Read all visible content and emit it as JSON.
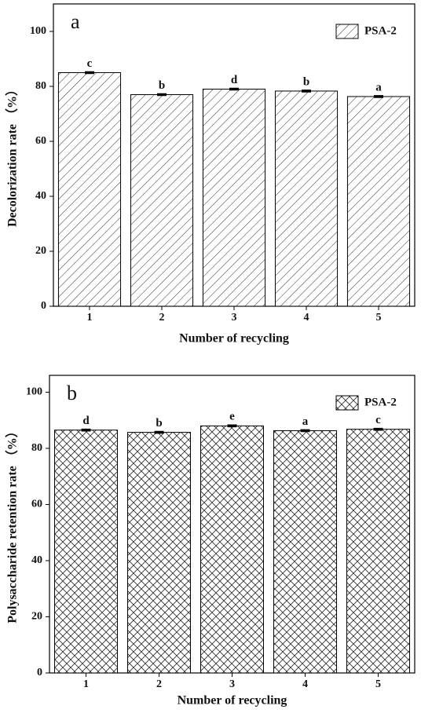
{
  "chart_data": [
    {
      "type": "bar",
      "panel_label": "a",
      "categories": [
        "1",
        "2",
        "3",
        "4",
        "5"
      ],
      "series": [
        {
          "name": "PSA-2",
          "color": "#000000",
          "hatch": "/",
          "values": [
            85,
            77,
            79,
            78.3,
            76.3
          ],
          "errors": [
            0.3,
            0.3,
            0.3,
            0.3,
            0.3
          ]
        }
      ],
      "significance_labels": [
        "c",
        "b",
        "d",
        "b",
        "a"
      ],
      "x_label": "Number of recycling",
      "y_label": "Decolorization rate （%）",
      "ylim": [
        0,
        110
      ],
      "yticks": [
        0,
        20,
        40,
        60,
        80,
        100
      ],
      "legend": "upper right"
    },
    {
      "type": "bar",
      "panel_label": "b",
      "categories": [
        "1",
        "2",
        "3",
        "4",
        "5"
      ],
      "series": [
        {
          "name": "PSA-2",
          "color": "#000000",
          "hatch": "x",
          "values": [
            86.5,
            85.7,
            88,
            86.3,
            86.8
          ],
          "errors": [
            0.3,
            0.3,
            0.3,
            0.3,
            0.3
          ]
        }
      ],
      "significance_labels": [
        "d",
        "b",
        "e",
        "a",
        "c"
      ],
      "x_label": "Number of recycling",
      "y_label": "Polysaccharide retention rate （%）",
      "ylim": [
        0,
        106
      ],
      "yticks": [
        0,
        20,
        40,
        60,
        80,
        100
      ],
      "legend": "upper right"
    }
  ]
}
